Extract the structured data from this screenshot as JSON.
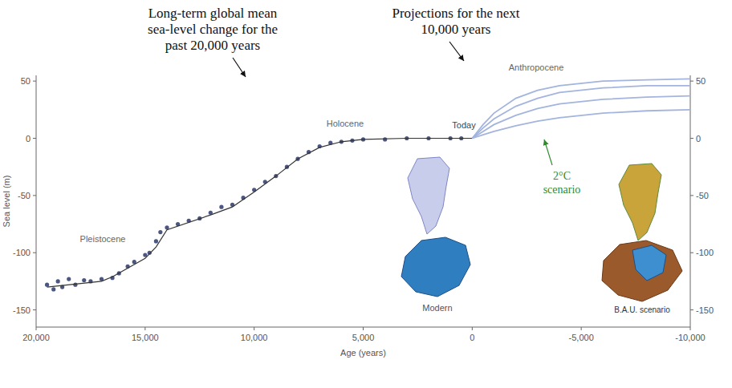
{
  "chart_data": {
    "type": "line",
    "x_label": "Age (years)",
    "y_label": "Sea level (m)",
    "xlim": [
      20000,
      -10000
    ],
    "xticks": [
      {
        "value": 20000,
        "label": "20,000"
      },
      {
        "value": 15000,
        "label": "15,000"
      },
      {
        "value": 10000,
        "label": "10,000"
      },
      {
        "value": 5000,
        "label": "5,000"
      },
      0,
      {
        "value": -5000,
        "label": "-5,000"
      },
      {
        "value": -10000,
        "label": "-10,000"
      }
    ],
    "ylim": [
      -165,
      55
    ],
    "yticks": [
      -150,
      -100,
      -50,
      0,
      50
    ],
    "y2lim": [
      -165,
      55
    ],
    "y2ticks": [
      -150,
      -100,
      -50,
      0,
      50
    ],
    "grid": false,
    "annotations": [
      "Long-term global mean sea-level change for the past 20,000 years",
      "Projections for the next 10,000 years",
      "Pleistocene",
      "Holocene",
      "Today",
      "Anthropocene",
      "2°C scenario",
      "Modern",
      "B.A.U. scenario"
    ],
    "series": [
      {
        "type": "scatter",
        "marker": "circle",
        "color": "#2b3a6b",
        "x": [
          19500,
          19200,
          19000,
          18800,
          18500,
          18200,
          17800,
          17500,
          17000,
          16500,
          16200,
          15800,
          15500,
          15000,
          14800,
          14500,
          14300,
          14000,
          13500,
          13000,
          12500,
          12000,
          11500,
          11000,
          10500,
          10000,
          9500,
          9000,
          8500,
          8000,
          7500,
          7000,
          6500,
          6000,
          5500,
          5000,
          4000,
          3000,
          2000,
          1000,
          500
        ],
        "values": [
          -128,
          -132,
          -125,
          -130,
          -123,
          -128,
          -124,
          -125,
          -123,
          -122,
          -118,
          -112,
          -108,
          -102,
          -100,
          -90,
          -82,
          -78,
          -75,
          -72,
          -70,
          -65,
          -60,
          -58,
          -52,
          -45,
          -38,
          -33,
          -25,
          -18,
          -12,
          -7,
          -4,
          -3,
          -2,
          -1,
          -1,
          0,
          0,
          0,
          0
        ]
      },
      {
        "type": "line",
        "line_style": "solid",
        "color": "#333333",
        "x": [
          19500,
          17000,
          16500,
          15000,
          14500,
          14000,
          12000,
          11000,
          10000,
          9000,
          8000,
          7000,
          6000,
          5000,
          3000,
          0
        ],
        "values": [
          -130,
          -125,
          -121,
          -105,
          -95,
          -80,
          -67,
          -60,
          -47,
          -33,
          -18,
          -8,
          -3,
          -1,
          0,
          0
        ]
      },
      {
        "type": "line",
        "line_style": "solid",
        "color": "#a3b4de",
        "x": [
          0,
          -500,
          -1000,
          -2000,
          -3000,
          -4000,
          -6000,
          -8000,
          -10000
        ],
        "values": [
          0,
          12,
          22,
          35,
          42,
          46,
          50,
          51,
          52
        ]
      },
      {
        "type": "line",
        "line_style": "solid",
        "color": "#a3b4de",
        "x": [
          0,
          -500,
          -1000,
          -2000,
          -3000,
          -4000,
          -6000,
          -8000,
          -10000
        ],
        "values": [
          0,
          9,
          17,
          28,
          35,
          40,
          44,
          46,
          46
        ]
      },
      {
        "type": "line",
        "line_style": "solid",
        "color": "#a3b4de",
        "x": [
          0,
          -500,
          -1000,
          -2000,
          -3000,
          -4000,
          -6000,
          -8000,
          -10000
        ],
        "values": [
          0,
          6,
          12,
          20,
          26,
          30,
          34,
          36,
          37
        ]
      },
      {
        "type": "line",
        "line_style": "solid",
        "color": "#a3b4de",
        "x": [
          0,
          -500,
          -1000,
          -2000,
          -3000,
          -4000,
          -6000,
          -8000,
          -10000
        ],
        "values": [
          0,
          3,
          6,
          11,
          15,
          18,
          22,
          24,
          25
        ]
      }
    ]
  }
}
